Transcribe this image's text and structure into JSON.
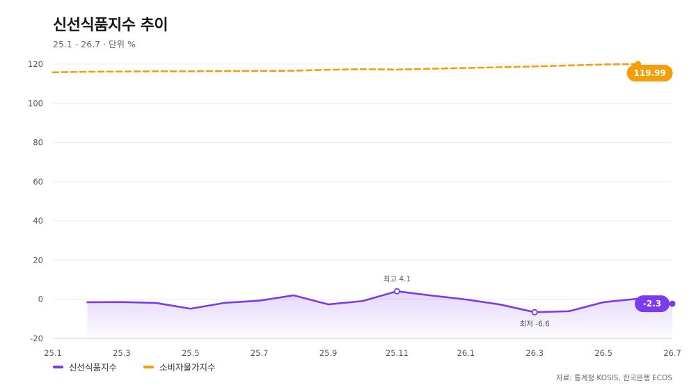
{
  "header": {
    "title": "신선식품지수 추이",
    "subtitle": "25.1 - 26.7 · 단위 %"
  },
  "source": "자료: 통계청 KOSIS, 한국은행 ECOS",
  "colors": {
    "fresh": "#7c3aed",
    "cpi": "#f59e0b",
    "grid": "#ececf0",
    "axis": "#d6d6dd"
  },
  "chart_data": {
    "type": "line",
    "x": [
      "25.1",
      "25.2",
      "25.3",
      "25.4",
      "25.5",
      "25.6",
      "25.7",
      "25.8",
      "25.9",
      "25.10",
      "25.11",
      "25.12",
      "26.1",
      "26.2",
      "26.3",
      "26.4",
      "26.5",
      "26.6",
      "26.7"
    ],
    "xticks": [
      "25.1",
      "25.3",
      "25.5",
      "25.7",
      "25.9",
      "25.11",
      "26.1",
      "26.3",
      "26.5",
      "26.7"
    ],
    "yticks": [
      -20,
      0,
      20,
      40,
      60,
      80,
      100,
      120
    ],
    "ylim": [
      -20,
      120
    ],
    "grid": true,
    "legend": "bottom-left",
    "series": [
      {
        "name": "신선식품지수",
        "style": "solid-area",
        "values": [
          null,
          -1.5,
          -1.4,
          -1.9,
          -4.8,
          -1.8,
          -0.7,
          2.0,
          -2.6,
          -0.9,
          4.1,
          1.9,
          -0.1,
          -2.7,
          -6.6,
          -6.1,
          -1.5,
          0.3,
          -2.3
        ]
      },
      {
        "name": "소비자물가지수",
        "style": "dashed",
        "values": [
          115.8,
          116.1,
          116.2,
          116.3,
          116.3,
          116.4,
          116.5,
          116.6,
          117.1,
          117.4,
          117.2,
          117.6,
          118.0,
          118.4,
          118.8,
          119.3,
          119.8,
          119.99,
          null
        ]
      }
    ],
    "annotations": [
      {
        "label": "최고 4.1",
        "x": "25.11",
        "y": 4.1,
        "series": 0,
        "position": "above"
      },
      {
        "label": "최저 -6.6",
        "x": "26.3",
        "y": -6.6,
        "series": 0,
        "position": "below"
      }
    ],
    "end_badges": [
      {
        "text": "119.99",
        "series": 1,
        "x": "26.6",
        "y": 119.99
      },
      {
        "text": "-2.3",
        "series": 0,
        "x": "26.7",
        "y": -2.3
      }
    ]
  }
}
